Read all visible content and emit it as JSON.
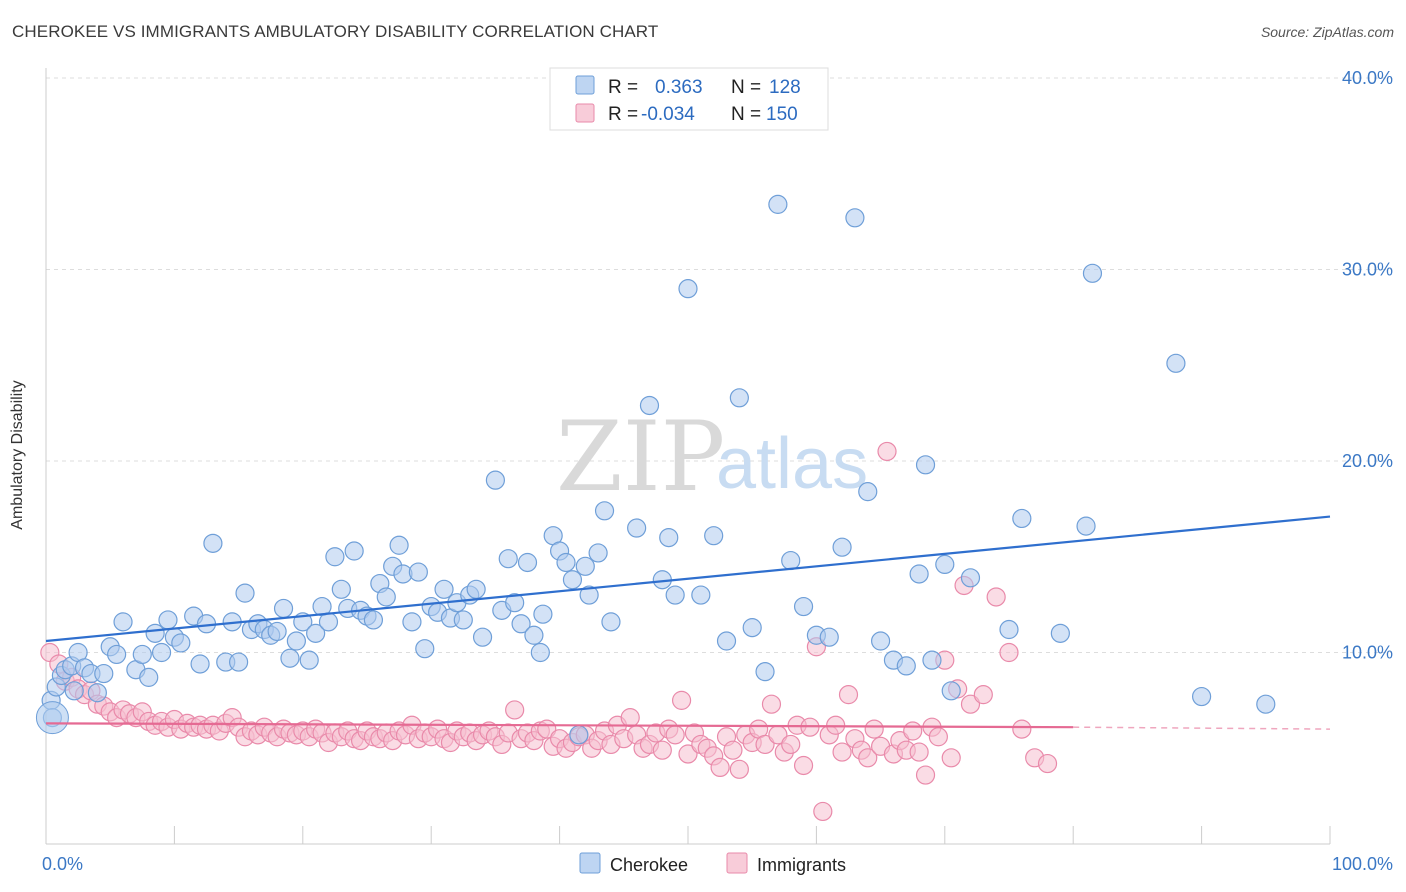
{
  "title": "CHEROKEE VS IMMIGRANTS AMBULATORY DISABILITY CORRELATION CHART",
  "source": "Source: ZipAtlas.com",
  "watermark": {
    "zip": "ZIP",
    "atlas": "atlas"
  },
  "colors": {
    "cherokee_fill": "#aecbef",
    "cherokee_stroke": "#6f9fd8",
    "cherokee_line": "#2f6fce",
    "immigrants_fill": "#f6bfd0",
    "immigrants_stroke": "#e98aaa",
    "immigrants_line": "#e56a93",
    "grid": "#dddddd",
    "tick_label": "#3b78c5"
  },
  "legend": {
    "rows": [
      {
        "r_label": "R =",
        "r_value": "0.363",
        "n_label": "N =",
        "n_value": "128"
      },
      {
        "r_label": "R =",
        "r_value": "-0.034",
        "n_label": "N =",
        "n_value": "150"
      }
    ]
  },
  "chart_data": {
    "type": "scatter",
    "title": "CHEROKEE VS IMMIGRANTS AMBULATORY DISABILITY CORRELATION CHART",
    "xlabel": "",
    "ylabel": "Ambulatory Disability",
    "xlim": [
      0,
      100
    ],
    "ylim": [
      0,
      40
    ],
    "x_tick_labels": [
      "0.0%",
      "100.0%"
    ],
    "y_tick_labels": [
      "10.0%",
      "20.0%",
      "30.0%",
      "40.0%"
    ],
    "y_ticks": [
      10,
      20,
      30,
      40
    ],
    "grid": true,
    "legend_placement": "top-center",
    "series": [
      {
        "name": "Cherokee",
        "trend": {
          "x0": 0,
          "y0": 10.6,
          "x1": 100,
          "y1": 17.1
        },
        "points": [
          [
            0.4,
            7.5
          ],
          [
            0.8,
            8.2
          ],
          [
            1.2,
            8.8
          ],
          [
            1.5,
            9.1
          ],
          [
            2.0,
            9.3
          ],
          [
            2.5,
            10.0
          ],
          [
            3.0,
            9.2
          ],
          [
            3.5,
            8.9
          ],
          [
            4.0,
            7.9
          ],
          [
            4.5,
            8.9
          ],
          [
            5.0,
            10.3
          ],
          [
            5.5,
            9.9
          ],
          [
            6.0,
            11.6
          ],
          [
            7.0,
            9.1
          ],
          [
            7.5,
            9.9
          ],
          [
            8.0,
            8.7
          ],
          [
            8.5,
            11.0
          ],
          [
            9.0,
            10.0
          ],
          [
            9.5,
            11.7
          ],
          [
            10.0,
            10.8
          ],
          [
            10.5,
            10.5
          ],
          [
            11.5,
            11.9
          ],
          [
            12.0,
            9.4
          ],
          [
            12.5,
            11.5
          ],
          [
            13.0,
            15.7
          ],
          [
            14.0,
            9.5
          ],
          [
            14.5,
            11.6
          ],
          [
            15.0,
            9.5
          ],
          [
            15.5,
            13.1
          ],
          [
            16.0,
            11.2
          ],
          [
            16.5,
            11.5
          ],
          [
            17.0,
            11.2
          ],
          [
            17.5,
            10.9
          ],
          [
            18.0,
            11.1
          ],
          [
            18.5,
            12.3
          ],
          [
            19.0,
            9.7
          ],
          [
            19.5,
            10.6
          ],
          [
            20.0,
            11.6
          ],
          [
            20.5,
            9.6
          ],
          [
            21.0,
            11.0
          ],
          [
            21.5,
            12.4
          ],
          [
            22.0,
            11.6
          ],
          [
            22.5,
            15.0
          ],
          [
            23.0,
            13.3
          ],
          [
            23.5,
            12.3
          ],
          [
            24.0,
            15.3
          ],
          [
            24.5,
            12.2
          ],
          [
            25.0,
            11.9
          ],
          [
            25.5,
            11.7
          ],
          [
            26.0,
            13.6
          ],
          [
            26.5,
            12.9
          ],
          [
            27.0,
            14.5
          ],
          [
            27.5,
            15.6
          ],
          [
            27.8,
            14.1
          ],
          [
            28.5,
            11.6
          ],
          [
            29.0,
            14.2
          ],
          [
            29.5,
            10.2
          ],
          [
            30.0,
            12.4
          ],
          [
            30.5,
            12.1
          ],
          [
            31.0,
            13.3
          ],
          [
            31.5,
            11.8
          ],
          [
            32.0,
            12.6
          ],
          [
            32.5,
            11.7
          ],
          [
            33.0,
            13.0
          ],
          [
            33.5,
            13.3
          ],
          [
            34.0,
            10.8
          ],
          [
            35.0,
            19.0
          ],
          [
            35.5,
            12.2
          ],
          [
            36.0,
            14.9
          ],
          [
            36.5,
            12.6
          ],
          [
            37.0,
            11.5
          ],
          [
            37.5,
            14.7
          ],
          [
            38.0,
            10.9
          ],
          [
            38.5,
            10.0
          ],
          [
            38.7,
            12.0
          ],
          [
            39.5,
            16.1
          ],
          [
            40.0,
            15.3
          ],
          [
            40.5,
            14.7
          ],
          [
            41.0,
            13.8
          ],
          [
            41.5,
            5.7
          ],
          [
            42.0,
            14.5
          ],
          [
            42.3,
            13.0
          ],
          [
            43.0,
            15.2
          ],
          [
            43.5,
            17.4
          ],
          [
            44.0,
            11.6
          ],
          [
            46.0,
            16.5
          ],
          [
            47.0,
            22.9
          ],
          [
            48.0,
            13.8
          ],
          [
            48.5,
            16.0
          ],
          [
            49.0,
            13.0
          ],
          [
            50.0,
            29.0
          ],
          [
            51.0,
            13.0
          ],
          [
            52.0,
            16.1
          ],
          [
            53.0,
            10.6
          ],
          [
            54.0,
            23.3
          ],
          [
            55.0,
            11.3
          ],
          [
            56.0,
            9.0
          ],
          [
            57.0,
            33.4
          ],
          [
            58.0,
            14.8
          ],
          [
            59.0,
            12.4
          ],
          [
            60.0,
            10.9
          ],
          [
            61.0,
            10.8
          ],
          [
            62.0,
            15.5
          ],
          [
            63.0,
            32.7
          ],
          [
            64.0,
            18.4
          ],
          [
            65.0,
            10.6
          ],
          [
            66.0,
            9.6
          ],
          [
            67.0,
            9.3
          ],
          [
            68.0,
            14.1
          ],
          [
            68.5,
            19.8
          ],
          [
            69.0,
            9.6
          ],
          [
            70.0,
            14.6
          ],
          [
            70.5,
            8.0
          ],
          [
            72.0,
            13.9
          ],
          [
            75.0,
            11.2
          ],
          [
            76.0,
            17.0
          ],
          [
            79.0,
            11.0
          ],
          [
            81.0,
            16.6
          ],
          [
            81.5,
            29.8
          ],
          [
            88.0,
            25.1
          ],
          [
            90.0,
            7.7
          ],
          [
            95.0,
            7.3
          ],
          [
            0.5,
            6.6
          ],
          [
            2.2,
            8.0
          ]
        ]
      },
      {
        "name": "Immigrants",
        "trend": {
          "x0": 0,
          "y0": 6.3,
          "x1": 80,
          "y1": 6.1
        },
        "trend_dashed_to": {
          "x": 100,
          "y": 6.0
        },
        "points": [
          [
            0.3,
            10.0
          ],
          [
            1.0,
            9.4
          ],
          [
            1.5,
            8.5
          ],
          [
            2.0,
            8.7
          ],
          [
            2.5,
            8.1
          ],
          [
            3.0,
            7.8
          ],
          [
            3.5,
            8.0
          ],
          [
            4.0,
            7.3
          ],
          [
            4.5,
            7.2
          ],
          [
            5.0,
            6.9
          ],
          [
            5.5,
            6.6
          ],
          [
            6.0,
            7.0
          ],
          [
            6.5,
            6.8
          ],
          [
            7.0,
            6.6
          ],
          [
            7.5,
            6.9
          ],
          [
            8.0,
            6.4
          ],
          [
            8.5,
            6.2
          ],
          [
            9.0,
            6.4
          ],
          [
            9.5,
            6.1
          ],
          [
            10.0,
            6.5
          ],
          [
            10.5,
            6.0
          ],
          [
            11.0,
            6.3
          ],
          [
            11.5,
            6.1
          ],
          [
            12.0,
            6.2
          ],
          [
            12.5,
            6.0
          ],
          [
            13.0,
            6.2
          ],
          [
            13.5,
            5.9
          ],
          [
            14.0,
            6.3
          ],
          [
            14.5,
            6.6
          ],
          [
            15.0,
            6.1
          ],
          [
            15.5,
            5.6
          ],
          [
            16.0,
            5.9
          ],
          [
            16.5,
            5.7
          ],
          [
            17.0,
            6.1
          ],
          [
            17.5,
            5.8
          ],
          [
            18.0,
            5.6
          ],
          [
            18.5,
            6.0
          ],
          [
            19.0,
            5.8
          ],
          [
            19.5,
            5.7
          ],
          [
            20.0,
            5.9
          ],
          [
            20.5,
            5.6
          ],
          [
            21.0,
            6.0
          ],
          [
            21.5,
            5.8
          ],
          [
            22.0,
            5.3
          ],
          [
            22.5,
            5.8
          ],
          [
            23.0,
            5.6
          ],
          [
            23.5,
            5.9
          ],
          [
            24.0,
            5.5
          ],
          [
            24.5,
            5.4
          ],
          [
            25.0,
            5.9
          ],
          [
            25.5,
            5.6
          ],
          [
            26.0,
            5.5
          ],
          [
            26.5,
            5.8
          ],
          [
            27.0,
            5.4
          ],
          [
            27.5,
            5.9
          ],
          [
            28.0,
            5.7
          ],
          [
            28.5,
            6.2
          ],
          [
            29.0,
            5.5
          ],
          [
            29.5,
            5.8
          ],
          [
            30.0,
            5.6
          ],
          [
            30.5,
            6.0
          ],
          [
            31.0,
            5.5
          ],
          [
            31.5,
            5.3
          ],
          [
            32.0,
            5.9
          ],
          [
            32.5,
            5.6
          ],
          [
            33.0,
            5.8
          ],
          [
            33.5,
            5.4
          ],
          [
            34.0,
            5.7
          ],
          [
            34.5,
            5.9
          ],
          [
            35.0,
            5.6
          ],
          [
            35.5,
            5.2
          ],
          [
            36.0,
            5.8
          ],
          [
            36.5,
            7.0
          ],
          [
            37.0,
            5.5
          ],
          [
            37.5,
            5.8
          ],
          [
            38.0,
            5.4
          ],
          [
            38.5,
            5.9
          ],
          [
            39.0,
            6.0
          ],
          [
            39.5,
            5.1
          ],
          [
            40.0,
            5.5
          ],
          [
            40.5,
            5.0
          ],
          [
            41.0,
            5.3
          ],
          [
            41.5,
            5.6
          ],
          [
            42.0,
            5.7
          ],
          [
            42.5,
            5.0
          ],
          [
            43.0,
            5.4
          ],
          [
            43.5,
            5.9
          ],
          [
            44.0,
            5.2
          ],
          [
            44.5,
            6.2
          ],
          [
            45.0,
            5.5
          ],
          [
            45.5,
            6.6
          ],
          [
            46.0,
            5.7
          ],
          [
            46.5,
            5.0
          ],
          [
            47.0,
            5.2
          ],
          [
            47.5,
            5.8
          ],
          [
            48.0,
            4.9
          ],
          [
            48.5,
            6.0
          ],
          [
            49.0,
            5.7
          ],
          [
            49.5,
            7.5
          ],
          [
            50.0,
            4.7
          ],
          [
            50.5,
            5.8
          ],
          [
            51.0,
            5.2
          ],
          [
            51.5,
            5.0
          ],
          [
            52.0,
            4.6
          ],
          [
            52.5,
            4.0
          ],
          [
            53.0,
            5.6
          ],
          [
            53.5,
            4.9
          ],
          [
            54.0,
            3.9
          ],
          [
            54.5,
            5.7
          ],
          [
            55.0,
            5.3
          ],
          [
            55.5,
            6.0
          ],
          [
            56.0,
            5.2
          ],
          [
            56.5,
            7.3
          ],
          [
            57.0,
            5.7
          ],
          [
            57.5,
            4.8
          ],
          [
            58.0,
            5.2
          ],
          [
            58.5,
            6.2
          ],
          [
            59.0,
            4.1
          ],
          [
            59.5,
            6.1
          ],
          [
            60.0,
            10.3
          ],
          [
            60.5,
            1.7
          ],
          [
            61.0,
            5.7
          ],
          [
            61.5,
            6.2
          ],
          [
            62.0,
            4.8
          ],
          [
            62.5,
            7.8
          ],
          [
            63.0,
            5.5
          ],
          [
            63.5,
            4.9
          ],
          [
            64.0,
            4.5
          ],
          [
            64.5,
            6.0
          ],
          [
            65.0,
            5.1
          ],
          [
            65.5,
            20.5
          ],
          [
            66.0,
            4.7
          ],
          [
            66.5,
            5.4
          ],
          [
            67.0,
            4.9
          ],
          [
            67.5,
            5.9
          ],
          [
            68.0,
            4.8
          ],
          [
            68.5,
            3.6
          ],
          [
            69.0,
            6.1
          ],
          [
            69.5,
            5.6
          ],
          [
            70.0,
            9.6
          ],
          [
            70.5,
            4.5
          ],
          [
            71.0,
            8.1
          ],
          [
            71.5,
            13.5
          ],
          [
            72.0,
            7.3
          ],
          [
            73.0,
            7.8
          ],
          [
            74.0,
            12.9
          ],
          [
            75.0,
            10.0
          ],
          [
            76.0,
            6.0
          ],
          [
            77.0,
            4.5
          ],
          [
            78.0,
            4.2
          ]
        ]
      }
    ]
  },
  "bottom_legend": {
    "items": [
      "Cherokee",
      "Immigrants"
    ]
  }
}
